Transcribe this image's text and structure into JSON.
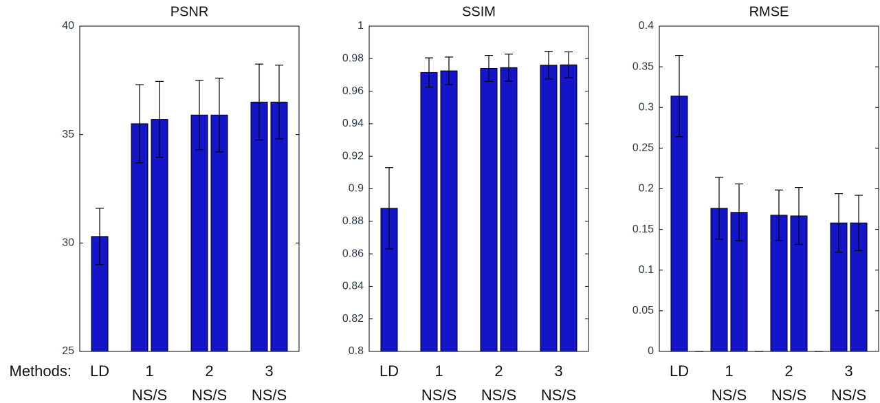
{
  "chart_data": [
    {
      "type": "bar",
      "title": "PSNR",
      "xlabel": "Methods:",
      "color": "#1414c8",
      "x": [
        1,
        2,
        3,
        4,
        5,
        6,
        7,
        8,
        9,
        10
      ],
      "values": [
        30.3,
        null,
        35.5,
        35.7,
        null,
        35.9,
        35.9,
        null,
        36.5,
        36.5
      ],
      "errors": [
        1.3,
        null,
        1.8,
        1.75,
        null,
        1.6,
        1.7,
        null,
        1.75,
        1.7
      ],
      "xlim": [
        0,
        11
      ],
      "ylim": [
        25,
        40
      ],
      "yticks": [
        25,
        30,
        35,
        40
      ],
      "xticks": [
        {
          "value": 1,
          "label": "LD"
        },
        {
          "value": 3.5,
          "label": "1"
        },
        {
          "value": 6.5,
          "label": "2"
        },
        {
          "value": 9.5,
          "label": "3"
        }
      ],
      "group_labels": [
        {
          "value": 3.5,
          "label": "NS/S"
        },
        {
          "value": 6.5,
          "label": "NS/S"
        },
        {
          "value": 9.5,
          "label": "NS/S"
        }
      ]
    },
    {
      "type": "bar",
      "title": "SSIM",
      "color": "#1414c8",
      "x": [
        1,
        2,
        3,
        4,
        5,
        6,
        7,
        8,
        9,
        10
      ],
      "values": [
        0.888,
        null,
        0.9715,
        0.9725,
        null,
        0.974,
        0.9745,
        null,
        0.976,
        0.9762
      ],
      "errors": [
        0.025,
        null,
        0.009,
        0.0085,
        null,
        0.008,
        0.0083,
        null,
        0.0085,
        0.008
      ],
      "xlim": [
        0,
        11
      ],
      "ylim": [
        0.8,
        1
      ],
      "yticks": [
        0.8,
        0.82,
        0.84,
        0.86,
        0.88,
        0.9,
        0.92,
        0.94,
        0.96,
        0.98,
        1
      ],
      "xticks": [
        {
          "value": 1,
          "label": "LD"
        },
        {
          "value": 3.5,
          "label": "1"
        },
        {
          "value": 6.5,
          "label": "2"
        },
        {
          "value": 9.5,
          "label": "3"
        }
      ],
      "group_labels": [
        {
          "value": 3.5,
          "label": "NS/S"
        },
        {
          "value": 6.5,
          "label": "NS/S"
        },
        {
          "value": 9.5,
          "label": "NS/S"
        }
      ]
    },
    {
      "type": "bar",
      "title": "RMSE",
      "color": "#1414c8",
      "x": [
        1,
        2,
        3,
        4,
        5,
        6,
        7,
        8,
        9,
        10
      ],
      "values": [
        0.314,
        0,
        0.176,
        0.171,
        0,
        0.1675,
        0.1666,
        0,
        0.158,
        0.158
      ],
      "errors": [
        0.05,
        0,
        0.038,
        0.035,
        0,
        0.031,
        0.035,
        0,
        0.036,
        0.034
      ],
      "xlim": [
        0,
        11
      ],
      "ylim": [
        0,
        0.4
      ],
      "yticks": [
        0,
        0.05,
        0.1,
        0.15,
        0.2,
        0.25,
        0.3,
        0.35,
        0.4
      ],
      "xticks": [
        {
          "value": 1,
          "label": "LD"
        },
        {
          "value": 3.5,
          "label": "1"
        },
        {
          "value": 6.5,
          "label": "2"
        },
        {
          "value": 9.5,
          "label": "3"
        }
      ],
      "group_labels": [
        {
          "value": 3.5,
          "label": "NS/S"
        },
        {
          "value": 6.5,
          "label": "NS/S"
        },
        {
          "value": 9.5,
          "label": "NS/S"
        }
      ]
    }
  ]
}
